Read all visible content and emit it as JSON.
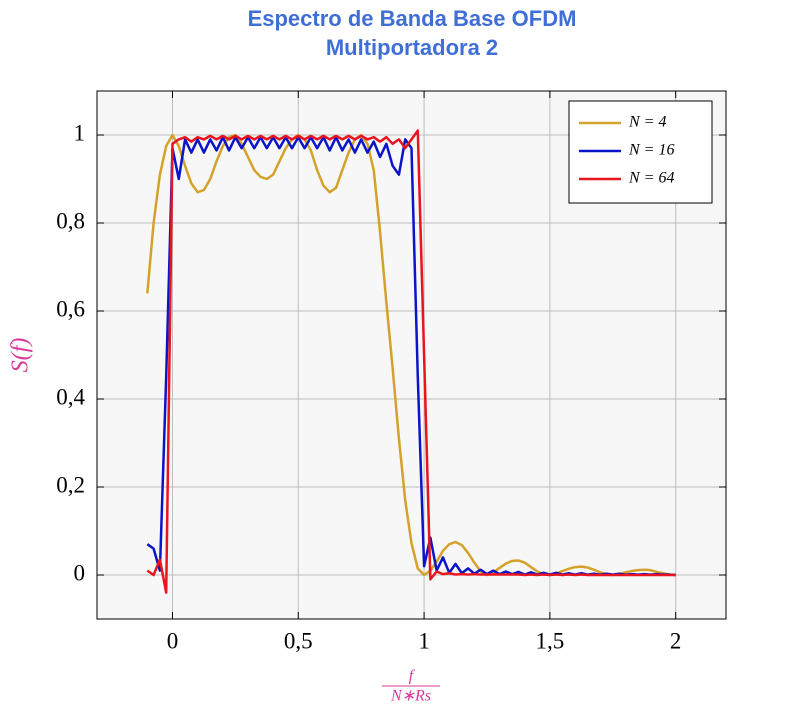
{
  "chart_data": {
    "type": "line",
    "title": [
      "Espectro de Banda Base OFDM",
      "Multiportadora 2"
    ],
    "y_label": "S(f)",
    "x_label": {
      "numerator": "f",
      "denominator": "N∗Rs"
    },
    "xlim": [
      -0.3,
      2.2
    ],
    "ylim": [
      -0.1,
      1.1
    ],
    "xticks": [
      0,
      {
        "value": 0.5,
        "label": "0,5"
      },
      1,
      {
        "value": 1.5,
        "label": "1,5"
      },
      2
    ],
    "yticks": [
      0,
      {
        "value": 0.2,
        "label": "0,2"
      },
      {
        "value": 0.4,
        "label": "0,4"
      },
      {
        "value": 0.6,
        "label": "0,6"
      },
      {
        "value": 0.8,
        "label": "0,8"
      },
      1
    ],
    "grid": true,
    "legend": "upper right",
    "x": [
      -0.1,
      -0.075,
      -0.05,
      -0.025,
      0,
      0.025,
      0.05,
      0.075,
      0.1,
      0.125,
      0.15,
      0.175,
      0.2,
      0.225,
      0.25,
      0.275,
      0.3,
      0.325,
      0.35,
      0.375,
      0.4,
      0.425,
      0.45,
      0.475,
      0.5,
      0.525,
      0.55,
      0.575,
      0.6,
      0.625,
      0.65,
      0.675,
      0.7,
      0.725,
      0.75,
      0.775,
      0.8,
      0.825,
      0.85,
      0.875,
      0.9,
      0.925,
      0.95,
      0.975,
      1,
      1.025,
      1.05,
      1.075,
      1.1,
      1.125,
      1.15,
      1.175,
      1.2,
      1.225,
      1.25,
      1.275,
      1.3,
      1.325,
      1.35,
      1.375,
      1.4,
      1.425,
      1.45,
      1.475,
      1.5,
      1.525,
      1.55,
      1.575,
      1.6,
      1.625,
      1.65,
      1.675,
      1.7,
      1.725,
      1.75,
      1.775,
      1.8,
      1.825,
      1.85,
      1.875,
      1.9,
      1.925,
      1.95,
      1.975,
      2
    ],
    "series": [
      {
        "name": "N = 4",
        "color": "#d4a22a",
        "values": [
          0.64,
          0.8,
          0.91,
          0.975,
          1.0,
          0.975,
          0.93,
          0.89,
          0.87,
          0.875,
          0.9,
          0.94,
          0.975,
          0.995,
          1.0,
          0.98,
          0.95,
          0.92,
          0.905,
          0.9,
          0.91,
          0.94,
          0.97,
          0.99,
          1.0,
          0.99,
          0.965,
          0.92,
          0.885,
          0.87,
          0.88,
          0.92,
          0.96,
          0.99,
          1.0,
          0.98,
          0.92,
          0.78,
          0.62,
          0.47,
          0.31,
          0.17,
          0.072,
          0.015,
          0.0,
          0.01,
          0.03,
          0.055,
          0.07,
          0.075,
          0.068,
          0.05,
          0.028,
          0.008,
          0.0,
          0.006,
          0.016,
          0.026,
          0.032,
          0.033,
          0.028,
          0.018,
          0.008,
          0.002,
          0,
          0.003,
          0.009,
          0.014,
          0.018,
          0.019,
          0.017,
          0.012,
          0.006,
          0.002,
          0,
          0.002,
          0.006,
          0.009,
          0.011,
          0.012,
          0.011,
          0.007,
          0.004,
          0.001,
          0
        ]
      },
      {
        "name": "N = 16",
        "color": "#0a14c8",
        "values": [
          0.07,
          0.06,
          0.01,
          0.45,
          0.97,
          0.9,
          0.99,
          0.96,
          0.99,
          0.96,
          0.99,
          0.965,
          0.995,
          0.965,
          0.995,
          0.97,
          0.995,
          0.97,
          0.995,
          0.97,
          0.995,
          0.97,
          0.995,
          0.97,
          0.995,
          0.97,
          0.995,
          0.97,
          0.995,
          0.965,
          0.995,
          0.965,
          0.99,
          0.96,
          0.99,
          0.96,
          0.985,
          0.95,
          0.98,
          0.93,
          0.91,
          0.99,
          0.97,
          0.45,
          0.02,
          0.085,
          0.01,
          0.04,
          0.005,
          0.025,
          0.004,
          0.015,
          0.003,
          0.012,
          0.002,
          0.01,
          0.002,
          0.008,
          0.002,
          0.007,
          0.001,
          0.006,
          0.001,
          0.005,
          0.001,
          0.005,
          0.001,
          0.004,
          0.001,
          0.004,
          0.001,
          0.003,
          0.001,
          0.003,
          0.001,
          0.003,
          0.001,
          0.002,
          0.001,
          0.002,
          0.001,
          0.002,
          0.001,
          0.001,
          0
        ]
      },
      {
        "name": "N = 64",
        "color": "#e8141e",
        "values": [
          0.01,
          0.0,
          0.035,
          -0.04,
          0.98,
          0.99,
          0.995,
          0.985,
          0.995,
          0.99,
          0.998,
          0.99,
          0.998,
          0.99,
          0.998,
          0.99,
          0.998,
          0.99,
          0.998,
          0.99,
          0.998,
          0.99,
          0.998,
          0.99,
          0.998,
          0.99,
          0.998,
          0.99,
          0.998,
          0.99,
          0.998,
          0.99,
          0.998,
          0.99,
          0.998,
          0.99,
          0.995,
          0.985,
          0.995,
          0.98,
          0.99,
          0.97,
          0.99,
          1.01,
          0.5,
          -0.01,
          0.008,
          0.002,
          0.004,
          0.001,
          0.002,
          0.001,
          0.002,
          0.001,
          0.001,
          0.001,
          0.001,
          0.001,
          0.001,
          0.001,
          0,
          0.001,
          0,
          0.001,
          0,
          0.001,
          0,
          0.001,
          0,
          0.001,
          0,
          0,
          0,
          0,
          0,
          0,
          0,
          0,
          0,
          0,
          0,
          0,
          0,
          0,
          0
        ]
      }
    ]
  }
}
